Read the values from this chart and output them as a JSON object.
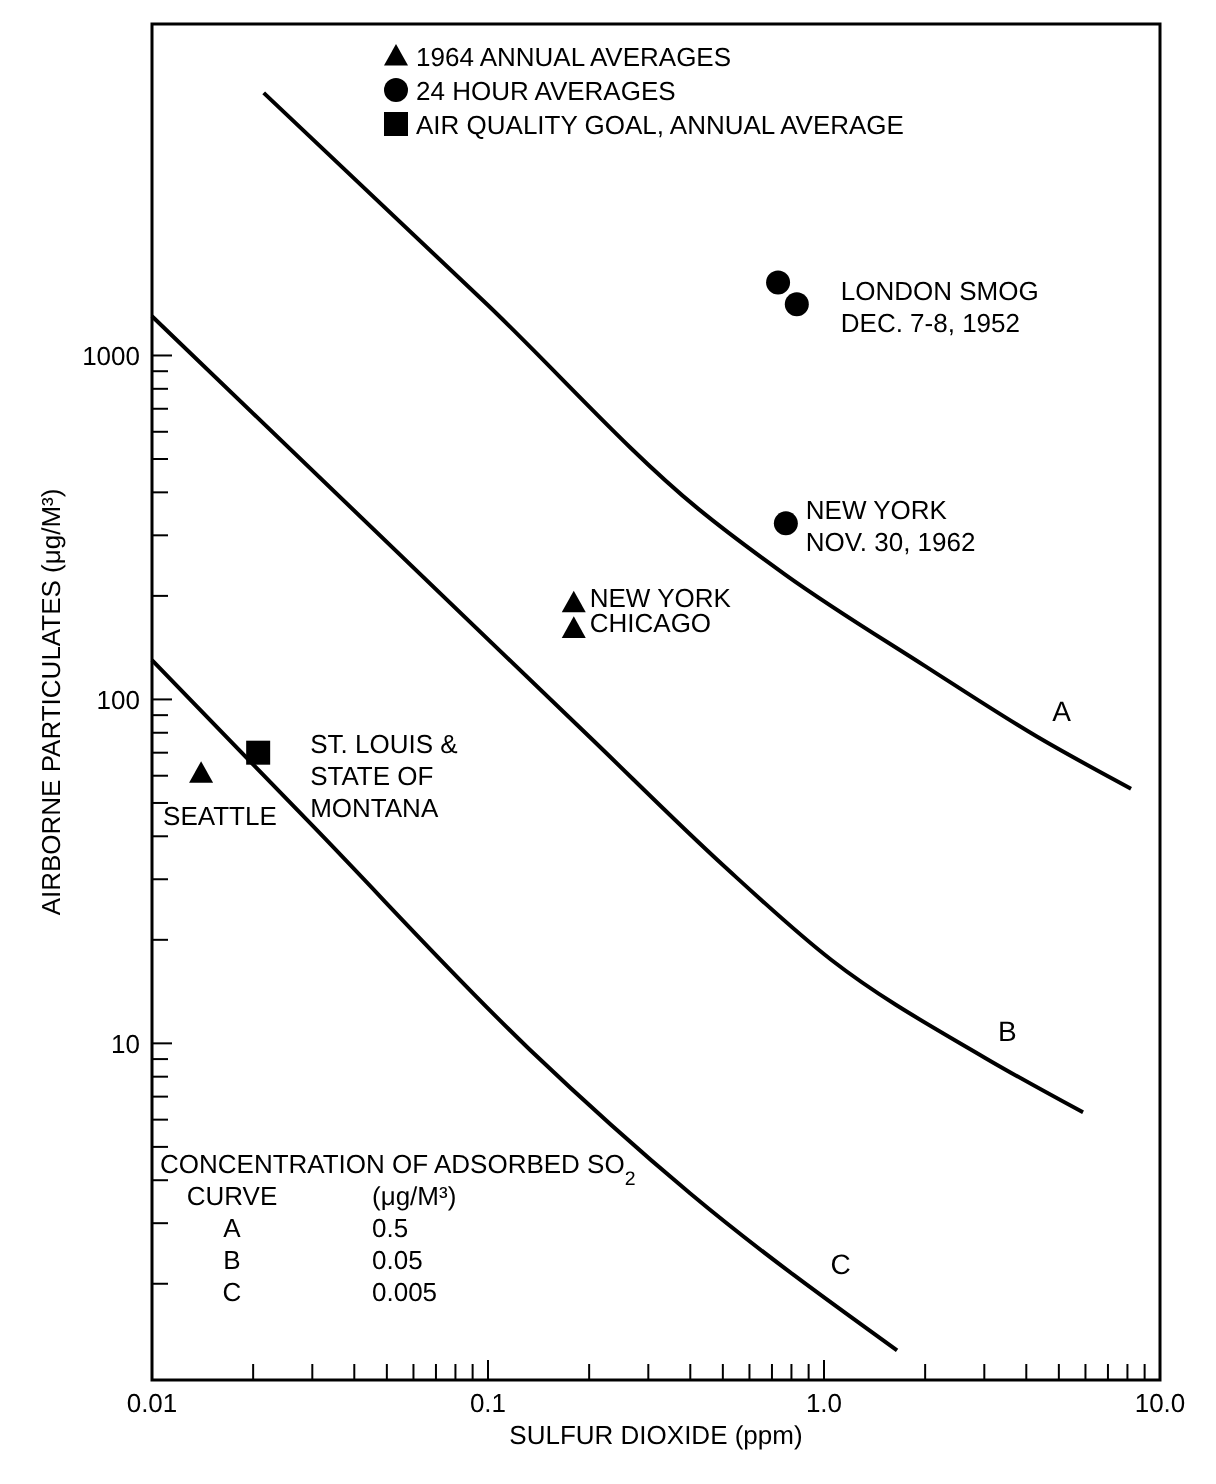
{
  "chart_data": {
    "type": "line",
    "xlabel": "SULFUR DIOXIDE (ppm)",
    "ylabel": "AIRBORNE PARTICULATES (μg/M³)",
    "log": "xy",
    "grid": false,
    "legend": "top",
    "line_style": "solid",
    "marker": "none",
    "xlim": [
      0.01,
      10
    ],
    "ylim": [
      1.05,
      9200
    ],
    "xticks": [
      0.01,
      {
        "value": 0.02,
        "label": null
      },
      {
        "value": 0.03,
        "label": null
      },
      {
        "value": 0.04,
        "label": null
      },
      {
        "value": 0.05,
        "label": null
      },
      {
        "value": 0.06,
        "label": null
      },
      {
        "value": 0.07,
        "label": null
      },
      {
        "value": 0.08,
        "label": null
      },
      {
        "value": 0.09,
        "label": null
      },
      0.1,
      {
        "value": 0.2,
        "label": null
      },
      {
        "value": 0.3,
        "label": null
      },
      {
        "value": 0.4,
        "label": null
      },
      {
        "value": 0.5,
        "label": null
      },
      {
        "value": 0.6,
        "label": null
      },
      {
        "value": 0.7,
        "label": null
      },
      {
        "value": 0.8,
        "label": null
      },
      {
        "value": 0.9,
        "label": null
      },
      {
        "value": 1,
        "label": "1.0"
      },
      {
        "value": 2,
        "label": null
      },
      {
        "value": 3,
        "label": null
      },
      {
        "value": 4,
        "label": null
      },
      {
        "value": 5,
        "label": null
      },
      {
        "value": 6,
        "label": null
      },
      {
        "value": 7,
        "label": null
      },
      {
        "value": 8,
        "label": null
      },
      {
        "value": 9,
        "label": null
      },
      {
        "value": 10,
        "label": "10.0"
      }
    ],
    "yticks": [
      {
        "value": 2,
        "label": null
      },
      {
        "value": 3,
        "label": null
      },
      {
        "value": 4,
        "label": null
      },
      {
        "value": 5,
        "label": null
      },
      {
        "value": 6,
        "label": null
      },
      {
        "value": 7,
        "label": null
      },
      {
        "value": 8,
        "label": null
      },
      {
        "value": 9,
        "label": null
      },
      10,
      {
        "value": 20,
        "label": null
      },
      {
        "value": 30,
        "label": null
      },
      {
        "value": 40,
        "label": null
      },
      {
        "value": 50,
        "label": null
      },
      {
        "value": 60,
        "label": null
      },
      {
        "value": 70,
        "label": null
      },
      {
        "value": 80,
        "label": null
      },
      {
        "value": 90,
        "label": null
      },
      100,
      {
        "value": 200,
        "label": null
      },
      {
        "value": 300,
        "label": null
      },
      {
        "value": 400,
        "label": null
      },
      {
        "value": 500,
        "label": null
      },
      {
        "value": 600,
        "label": null
      },
      {
        "value": 700,
        "label": null
      },
      {
        "value": 800,
        "label": null
      },
      {
        "value": 900,
        "label": null
      },
      1000
    ],
    "series": [
      {
        "name": "A",
        "color": "#000000",
        "x": [
          0.0215,
          0.1,
          0.42,
          0.77,
          2,
          4.3,
          8.2
        ],
        "values": [
          5800,
          1400,
          360,
          230,
          125,
          78,
          55
        ]
      },
      {
        "name": "B",
        "color": "#000000",
        "x": [
          0.01,
          0.2,
          0.5,
          1.05,
          3,
          5.9
        ],
        "values": [
          1300,
          78,
          33,
          17.5,
          9.1,
          6.3
        ]
      },
      {
        "name": "C",
        "color": "#000000",
        "x": [
          0.01,
          0.03,
          0.133,
          0.4,
          1.65
        ],
        "values": [
          130,
          43,
          9.6,
          3.66,
          1.28
        ]
      },
      {
        "name": "1964 ANNUAL AVERAGES",
        "type": "scatter",
        "marker": "triangle",
        "color": "#000000",
        "x": [
          0.014,
          0.18,
          0.18
        ],
        "values": [
          61,
          191,
          161
        ]
      },
      {
        "name": "24 HOUR AVERAGES",
        "type": "scatter",
        "marker": "circle",
        "color": "#000000",
        "x": [
          0.73,
          0.83,
          0.77
        ],
        "values": [
          1630,
          1410,
          325
        ]
      },
      {
        "name": "AIR QUALITY GOAL, ANNUAL AVERAGE",
        "type": "scatter",
        "marker": "square",
        "color": "#000000",
        "x": [
          0.0207
        ],
        "values": [
          70
        ]
      }
    ],
    "annotations": [
      {
        "text": "LONDON SMOG\nDEC. 7-8, 1952",
        "x": 0.83,
        "y": 1410
      },
      {
        "text": "NEW YORK\nNOV. 30, 1962",
        "x": 0.77,
        "y": 325
      },
      {
        "text": "NEW YORK",
        "x": 0.18,
        "y": 191
      },
      {
        "text": "CHICAGO",
        "x": 0.18,
        "y": 161
      },
      {
        "text": "ST. LOUIS &\nSTATE OF\nMONTANA",
        "x": 0.0207,
        "y": 70
      },
      {
        "text": "SEATTLE",
        "x": 0.014,
        "y": 61
      },
      "CONCENTRATION OF ADSORBED SO$_{2}$\nCURVE\t(μg/M³)\nA\t0.5\nB\t0.05\nC\t0.005"
    ]
  }
}
